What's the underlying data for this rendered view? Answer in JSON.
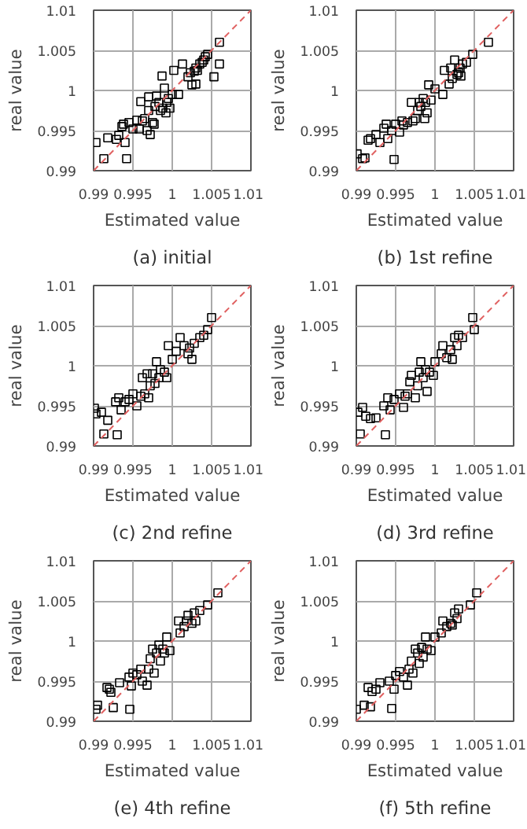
{
  "chart_data": [
    {
      "type": "scatter",
      "title": "(a) initial",
      "xlabel": "Estimated value",
      "ylabel": "real value",
      "xlim": [
        0.99,
        1.01
      ],
      "ylim": [
        0.99,
        1.01
      ],
      "xticks": [
        0.99,
        0.995,
        1,
        1.005,
        1.01
      ],
      "yticks": [
        0.99,
        0.995,
        1,
        1.005,
        1.01
      ],
      "grid": true,
      "series": [
        {
          "marker": "square",
          "color": "#000000",
          "x": [
            0.9903,
            0.9913,
            0.9918,
            0.9929,
            0.9932,
            0.9936,
            0.9938,
            0.994,
            0.9942,
            0.9945,
            0.995,
            0.9955,
            0.9958,
            0.996,
            0.9962,
            0.9965,
            0.9968,
            0.997,
            0.997,
            0.9972,
            0.9975,
            0.9977,
            0.9978,
            0.998,
            0.9983,
            0.9985,
            0.9987,
            0.9988,
            0.999,
            0.9992,
            0.9993,
            0.9995,
            0.9997,
            1.0,
            1.0002,
            1.0008,
            1.0013,
            1.002,
            1.0023,
            1.0025,
            1.0028,
            1.003,
            1.003,
            1.0032,
            1.0035,
            1.0038,
            1.004,
            1.0042,
            1.0045,
            1.0053,
            1.006,
            1.006
          ],
          "values": [
            0.9935,
            0.9915,
            0.9941,
            0.9939,
            0.9944,
            0.9955,
            0.9958,
            0.9935,
            0.9915,
            0.996,
            0.9952,
            0.9963,
            0.9952,
            0.9986,
            0.9962,
            0.9965,
            0.995,
            0.9975,
            0.9992,
            0.9945,
            0.996,
            0.9958,
            0.998,
            0.9993,
            0.9985,
            0.9975,
            1.0018,
            0.9978,
            1.0003,
            0.9972,
            0.9985,
            0.999,
            0.9978,
            0.9995,
            1.0025,
            0.9995,
            1.0033,
            1.0017,
            1.0022,
            1.0007,
            1.0024,
            1.0008,
            1.0028,
            1.0025,
            1.0033,
            1.0035,
            1.0038,
            1.0042,
            1.0045,
            1.0017,
            1.0033,
            1.006
          ]
        },
        {
          "type": "line",
          "color": "#e06060",
          "line_style": "dashed",
          "x": [
            0.99,
            1.01
          ],
          "values": [
            0.99,
            1.01
          ]
        }
      ]
    },
    {
      "type": "scatter",
      "title": "(b) 1st refine",
      "xlabel": "Estimated value",
      "ylabel": "real value",
      "xlim": [
        0.99,
        1.01
      ],
      "ylim": [
        0.99,
        1.01
      ],
      "xticks": [
        0.99,
        0.995,
        1,
        1.005,
        1.01
      ],
      "yticks": [
        0.99,
        0.995,
        1,
        1.005,
        1.01
      ],
      "grid": true,
      "series": [
        {
          "marker": "square",
          "color": "#000000",
          "x": [
            0.9901,
            0.9908,
            0.9911,
            0.9915,
            0.9918,
            0.9925,
            0.993,
            0.9935,
            0.9938,
            0.994,
            0.9945,
            0.9948,
            0.995,
            0.9955,
            0.9958,
            0.996,
            0.9965,
            0.997,
            0.9972,
            0.9975,
            0.9978,
            0.998,
            0.9982,
            0.9985,
            0.9987,
            0.9988,
            0.999,
            0.9992,
            0.9995,
            1.0,
            1.001,
            1.0012,
            1.0018,
            1.002,
            1.0022,
            1.0025,
            1.0028,
            1.003,
            1.0032,
            1.0033,
            1.0035,
            1.004,
            1.0048,
            1.0068
          ],
          "values": [
            0.9921,
            0.9915,
            0.9916,
            0.9938,
            0.994,
            0.9945,
            0.9935,
            0.9953,
            0.9958,
            0.994,
            0.995,
            0.9914,
            0.9958,
            0.9948,
            0.9962,
            0.9957,
            0.996,
            0.9985,
            0.9962,
            0.9965,
            0.9975,
            0.9985,
            0.998,
            0.999,
            0.9965,
            0.9985,
            0.9972,
            1.0007,
            0.9988,
            1.0002,
            0.9995,
            1.0025,
            1.0008,
            1.0028,
            1.0015,
            1.0038,
            1.002,
            1.0022,
            1.0028,
            1.0018,
            1.0033,
            1.0035,
            1.0045,
            1.006
          ]
        },
        {
          "type": "line",
          "color": "#e06060",
          "line_style": "dashed",
          "x": [
            0.99,
            1.01
          ],
          "values": [
            0.99,
            1.01
          ]
        }
      ]
    },
    {
      "type": "scatter",
      "title": "(c) 2nd refine",
      "xlabel": "Estimated value",
      "ylabel": "real value",
      "xlim": [
        0.99,
        1.01
      ],
      "ylim": [
        0.99,
        1.01
      ],
      "xticks": [
        0.99,
        0.995,
        1,
        1.005,
        1.01
      ],
      "yticks": [
        0.99,
        0.995,
        1,
        1.005,
        1.01
      ],
      "grid": true,
      "series": [
        {
          "marker": "square",
          "color": "#000000",
          "x": [
            0.9901,
            0.9903,
            0.991,
            0.9913,
            0.9918,
            0.993,
            0.9928,
            0.9932,
            0.9935,
            0.994,
            0.9945,
            0.995,
            0.9955,
            0.996,
            0.9962,
            0.9965,
            0.9968,
            0.997,
            0.9972,
            0.9975,
            0.9978,
            0.998,
            0.9983,
            0.9985,
            0.999,
            0.9993,
            0.9995,
            1.0,
            1.0005,
            1.001,
            1.0015,
            1.002,
            1.0022,
            1.0025,
            1.0028,
            1.0035,
            1.004,
            1.0045,
            1.005
          ],
          "values": [
            0.9947,
            0.994,
            0.9942,
            0.9915,
            0.9932,
            0.9914,
            0.9955,
            0.996,
            0.9945,
            0.9955,
            0.9958,
            0.9965,
            0.995,
            0.9962,
            0.9985,
            0.9965,
            0.999,
            0.996,
            0.9975,
            0.999,
            0.9978,
            1.0005,
            0.9985,
            0.9995,
            0.9992,
            0.9985,
            1.0025,
            1.0008,
            1.0018,
            1.0035,
            1.0025,
            1.0015,
            1.0022,
            1.0008,
            1.0028,
            1.0035,
            1.0038,
            1.0045,
            1.006
          ]
        },
        {
          "type": "line",
          "color": "#e06060",
          "line_style": "dashed",
          "x": [
            0.99,
            1.01
          ],
          "values": [
            0.99,
            1.01
          ]
        }
      ]
    },
    {
      "type": "scatter",
      "title": "(d) 3rd refine",
      "xlabel": "Estimated value",
      "ylabel": "real value",
      "xlim": [
        0.99,
        1.01
      ],
      "ylim": [
        0.99,
        1.01
      ],
      "xticks": [
        0.99,
        0.995,
        1,
        1.005,
        1.01
      ],
      "yticks": [
        0.99,
        0.995,
        1,
        1.005,
        1.01
      ],
      "grid": true,
      "series": [
        {
          "marker": "square",
          "color": "#000000",
          "x": [
            0.9902,
            0.9905,
            0.9908,
            0.9912,
            0.9918,
            0.9925,
            0.9935,
            0.9937,
            0.994,
            0.9943,
            0.9948,
            0.9955,
            0.996,
            0.9962,
            0.9965,
            0.9968,
            0.997,
            0.9975,
            0.9978,
            0.998,
            0.9982,
            0.9985,
            0.9988,
            0.999,
            0.9993,
            0.9998,
            1.0,
            1.0008,
            1.001,
            1.0015,
            1.002,
            1.0022,
            1.0025,
            1.0028,
            1.003,
            1.0035,
            1.0048,
            1.005
          ],
          "values": [
            0.9942,
            0.9915,
            0.9948,
            0.9937,
            0.9934,
            0.9935,
            0.995,
            0.9914,
            0.996,
            0.9945,
            0.9958,
            0.9965,
            0.9948,
            0.9962,
            0.9965,
            0.998,
            0.9988,
            0.996,
            0.9975,
            0.9992,
            1.0005,
            0.9985,
            0.9995,
            0.9968,
            0.9992,
            0.9988,
            1.0005,
            1.0015,
            1.0025,
            1.001,
            1.002,
            1.0008,
            1.0035,
            1.0025,
            1.0038,
            1.0035,
            1.006,
            1.0045
          ]
        },
        {
          "type": "line",
          "color": "#e06060",
          "line_style": "dashed",
          "x": [
            0.99,
            1.01
          ],
          "values": [
            0.99,
            1.01
          ]
        }
      ]
    },
    {
      "type": "scatter",
      "title": "(e) 4th refine",
      "xlabel": "Estimated value",
      "ylabel": "real value",
      "xlim": [
        0.99,
        1.01
      ],
      "ylim": [
        0.99,
        1.01
      ],
      "xticks": [
        0.99,
        0.995,
        1,
        1.005,
        1.01
      ],
      "yticks": [
        0.99,
        0.995,
        1,
        1.005,
        1.01
      ],
      "grid": true,
      "series": [
        {
          "marker": "square",
          "color": "#000000",
          "x": [
            0.9903,
            0.9905,
            0.9917,
            0.992,
            0.9922,
            0.9925,
            0.9933,
            0.9945,
            0.9946,
            0.9948,
            0.995,
            0.9955,
            0.996,
            0.9962,
            0.9968,
            0.997,
            0.9972,
            0.9975,
            0.9977,
            0.998,
            0.9983,
            0.9985,
            0.9988,
            0.999,
            0.9993,
            0.9997,
            1.0008,
            1.001,
            1.0015,
            1.0018,
            1.002,
            1.0025,
            1.0028,
            1.003,
            1.0035,
            1.0045,
            1.0058
          ],
          "values": [
            0.9915,
            0.992,
            0.9942,
            0.994,
            0.9936,
            0.9917,
            0.9948,
            0.9955,
            0.9915,
            0.9944,
            0.996,
            0.9958,
            0.9965,
            0.995,
            0.9945,
            0.9965,
            0.9978,
            0.999,
            0.996,
            0.9985,
            0.9995,
            0.9975,
            0.999,
            0.9985,
            1.0005,
            0.9988,
            1.0025,
            1.001,
            1.0018,
            1.0025,
            1.0032,
            1.0022,
            1.0035,
            1.0025,
            1.0038,
            1.0045,
            1.006
          ]
        },
        {
          "type": "line",
          "color": "#e06060",
          "line_style": "dashed",
          "x": [
            0.99,
            1.01
          ],
          "values": [
            0.99,
            1.01
          ]
        }
      ]
    },
    {
      "type": "scatter",
      "title": "(f) 5th refine",
      "xlabel": "Estimated value",
      "ylabel": "real value",
      "xlim": [
        0.99,
        1.01
      ],
      "ylim": [
        0.99,
        1.01
      ],
      "xticks": [
        0.99,
        0.995,
        1,
        1.005,
        1.01
      ],
      "yticks": [
        0.99,
        0.995,
        1,
        1.005,
        1.01
      ],
      "grid": true,
      "series": [
        {
          "marker": "square",
          "color": "#000000",
          "x": [
            0.99,
            0.991,
            0.9915,
            0.9918,
            0.992,
            0.9925,
            0.993,
            0.9942,
            0.9945,
            0.9948,
            0.995,
            0.9955,
            0.996,
            0.9965,
            0.9967,
            0.997,
            0.9972,
            0.9975,
            0.9978,
            0.998,
            0.9983,
            0.9985,
            0.9988,
            0.999,
            0.9995,
            1.0,
            1.0008,
            1.001,
            1.0015,
            1.002,
            1.0022,
            1.0025,
            1.0028,
            1.003,
            1.0045,
            1.0053
          ],
          "values": [
            0.9915,
            0.992,
            0.9942,
            0.9918,
            0.9937,
            0.994,
            0.9948,
            0.995,
            0.9916,
            0.994,
            0.9957,
            0.9962,
            0.9955,
            0.9945,
            0.9965,
            0.9975,
            0.996,
            0.999,
            0.9985,
            0.9972,
            0.9992,
            0.998,
            1.0005,
            0.999,
            0.9988,
            1.0005,
            1.001,
            1.0025,
            1.0018,
            1.0022,
            1.002,
            1.0035,
            1.0028,
            1.004,
            1.0045,
            1.006
          ]
        },
        {
          "type": "line",
          "color": "#e06060",
          "line_style": "dashed",
          "x": [
            0.99,
            1.01
          ],
          "values": [
            0.99,
            1.01
          ]
        }
      ]
    }
  ]
}
